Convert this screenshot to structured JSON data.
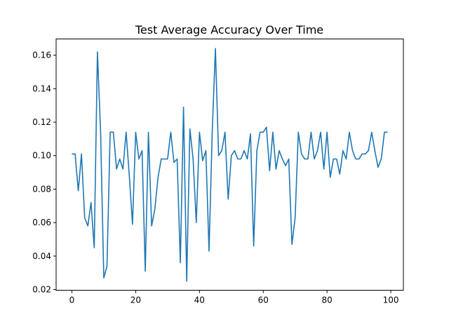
{
  "chart_data": {
    "type": "line",
    "title": "Test Average Accuracy Over Time",
    "xlabel": "",
    "ylabel": "",
    "xlim": [
      -4.95,
      103.95
    ],
    "ylim": [
      0.0196,
      0.1697
    ],
    "grid": false,
    "legend": "none",
    "x_ticks": [
      0,
      20,
      40,
      60,
      80,
      100
    ],
    "x_tick_labels": [
      "0",
      "20",
      "40",
      "60",
      "80",
      "100"
    ],
    "y_ticks": [
      0.02,
      0.04,
      0.06,
      0.08,
      0.1,
      0.12,
      0.14,
      0.16
    ],
    "y_tick_labels": [
      "0.02",
      "0.04",
      "0.06",
      "0.08",
      "0.10",
      "0.12",
      "0.14",
      "0.16"
    ],
    "series": [
      {
        "color": "#1f77b4",
        "x": [
          0,
          1,
          2,
          3,
          4,
          5,
          6,
          7,
          8,
          9,
          10,
          11,
          12,
          13,
          14,
          15,
          16,
          17,
          18,
          19,
          20,
          21,
          22,
          23,
          24,
          25,
          26,
          27,
          28,
          29,
          30,
          31,
          32,
          33,
          34,
          35,
          36,
          37,
          38,
          39,
          40,
          41,
          42,
          43,
          44,
          45,
          46,
          47,
          48,
          49,
          50,
          51,
          52,
          53,
          54,
          55,
          56,
          57,
          58,
          59,
          60,
          61,
          62,
          63,
          64,
          65,
          66,
          67,
          68,
          69,
          70,
          71,
          72,
          73,
          74,
          75,
          76,
          77,
          78,
          79,
          80,
          81,
          82,
          83,
          84,
          85,
          86,
          87,
          88,
          89,
          90,
          91,
          92,
          93,
          94,
          95,
          96,
          97,
          98,
          99
        ],
        "y": [
          0.101,
          0.101,
          0.079,
          0.101,
          0.063,
          0.058,
          0.072,
          0.045,
          0.162,
          0.114,
          0.027,
          0.034,
          0.114,
          0.114,
          0.092,
          0.098,
          0.092,
          0.114,
          0.088,
          0.059,
          0.114,
          0.098,
          0.103,
          0.031,
          0.114,
          0.058,
          0.068,
          0.087,
          0.098,
          0.098,
          0.098,
          0.114,
          0.096,
          0.098,
          0.036,
          0.129,
          0.025,
          0.116,
          0.098,
          0.06,
          0.114,
          0.097,
          0.103,
          0.043,
          0.114,
          0.164,
          0.1,
          0.103,
          0.114,
          0.074,
          0.1,
          0.103,
          0.098,
          0.098,
          0.103,
          0.098,
          0.113,
          0.046,
          0.103,
          0.114,
          0.114,
          0.117,
          0.091,
          0.114,
          0.092,
          0.103,
          0.098,
          0.094,
          0.098,
          0.047,
          0.063,
          0.114,
          0.101,
          0.098,
          0.098,
          0.114,
          0.098,
          0.103,
          0.114,
          0.092,
          0.114,
          0.087,
          0.098,
          0.098,
          0.089,
          0.103,
          0.098,
          0.114,
          0.103,
          0.098,
          0.098,
          0.101,
          0.101,
          0.103,
          0.114,
          0.103,
          0.093,
          0.098,
          0.114,
          0.114
        ]
      }
    ]
  }
}
